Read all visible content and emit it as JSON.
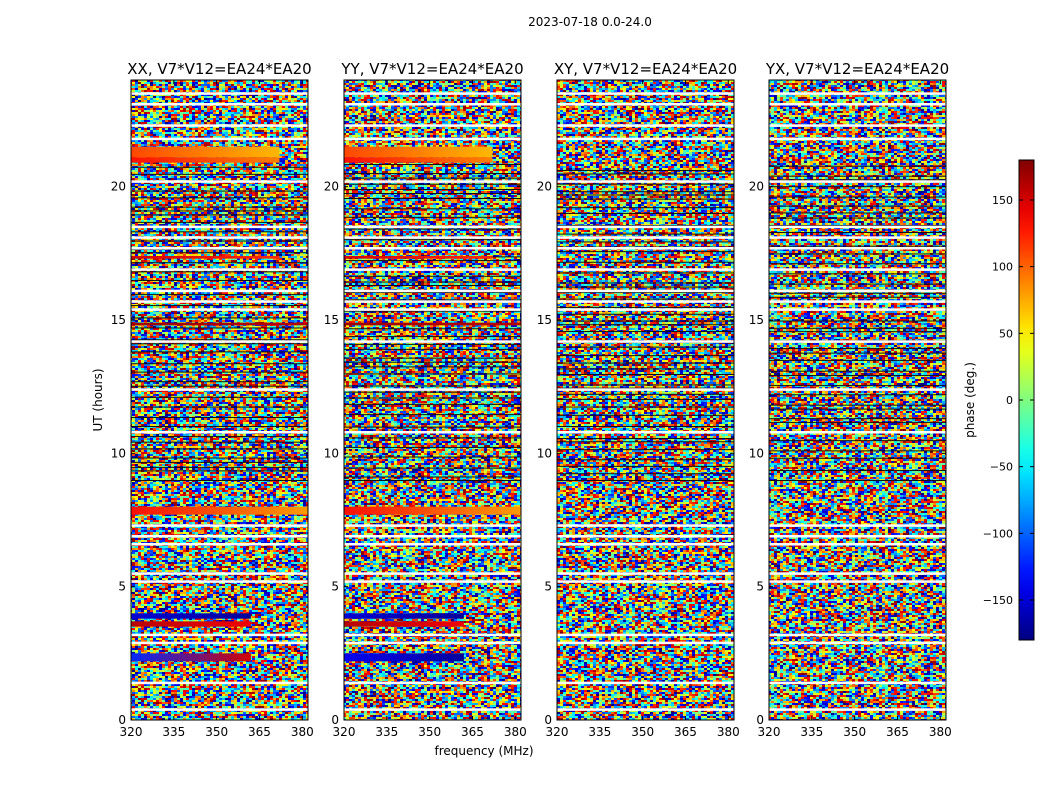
{
  "figure": {
    "suptitle": "2023-07-18 0.0-24.0",
    "colormap": "jet"
  },
  "chart_data": {
    "type": "heatmap",
    "xlabel": "frequency (MHz)",
    "ylabel": "UT (hours)",
    "xlim": [
      320,
      382
    ],
    "ylim": [
      0,
      24
    ],
    "xticks": [
      "320",
      "335",
      "350",
      "365",
      "380"
    ],
    "xtick_values": [
      320,
      335,
      350,
      365,
      380
    ],
    "yticks": [
      "0",
      "5",
      "10",
      "15",
      "20"
    ],
    "ytick_values": [
      0,
      5,
      10,
      15,
      20
    ],
    "panels": [
      {
        "title": "XX, V7*V12=EA24*EA20",
        "correlation": "XX"
      },
      {
        "title": "YY, V7*V12=EA24*EA20",
        "correlation": "YY"
      },
      {
        "title": "XY, V7*V12=EA24*EA20",
        "correlation": "XY"
      },
      {
        "title": "YX, V7*V12=EA24*EA20",
        "correlation": "YX"
      }
    ],
    "coherent_bands": [
      {
        "panels": [
          "XX",
          "YY"
        ],
        "ut_start": 21.1,
        "ut_end": 21.5,
        "phase_start": 110,
        "phase_end": 70,
        "freq_end": 372
      },
      {
        "panels": [
          "XX",
          "YY"
        ],
        "ut_start": 20.9,
        "ut_end": 21.1,
        "phase_start": 130,
        "phase_end": 90,
        "freq_end": 372
      },
      {
        "panels": [
          "XX",
          "YY"
        ],
        "ut_start": 7.7,
        "ut_end": 8.0,
        "phase_start": 130,
        "phase_end": 80,
        "freq_end": 382
      },
      {
        "panels": [
          "XX",
          "YY"
        ],
        "ut_start": 3.8,
        "ut_end": 4.0,
        "phase_start": -150,
        "phase_end": -170,
        "freq_end": 362
      },
      {
        "panels": [
          "XX",
          "YY"
        ],
        "ut_start": 3.5,
        "ut_end": 3.7,
        "phase_start": 160,
        "phase_end": 140,
        "freq_end": 362
      },
      {
        "panels": [
          "XX"
        ],
        "ut_start": 2.2,
        "ut_end": 2.5,
        "phase_start": -120,
        "phase_end": 150,
        "freq_end": 362
      },
      {
        "panels": [
          "YY"
        ],
        "ut_start": 2.2,
        "ut_end": 2.5,
        "phase_start": -140,
        "phase_end": -170,
        "freq_end": 362
      },
      {
        "panels": [
          "XX",
          "YY"
        ],
        "ut_start": 14.8,
        "ut_end": 14.9,
        "phase_start": 170,
        "phase_end": 160,
        "freq_end": 382
      },
      {
        "panels": [
          "XX",
          "YY"
        ],
        "ut_start": 17.3,
        "ut_end": 17.4,
        "phase_start": 150,
        "phase_end": 120,
        "freq_end": 372
      }
    ],
    "flagged_rows_ut": [
      0.4,
      1.4,
      2.9,
      3.2,
      5.2,
      5.5,
      6.6,
      6.9,
      7.3,
      10.8,
      12.4,
      14.2,
      15.4,
      15.7,
      16.1,
      16.9,
      17.7,
      18.1,
      18.5,
      20.2,
      21.8,
      22.3,
      23.1,
      23.5
    ],
    "colorbar": {
      "label": "phase (deg.)",
      "range": [
        -180,
        180
      ],
      "ticks": [
        "150",
        "100",
        "50",
        "0",
        "−50",
        "−100",
        "−150"
      ],
      "tick_values": [
        150,
        100,
        50,
        0,
        -50,
        -100,
        -150
      ]
    }
  }
}
